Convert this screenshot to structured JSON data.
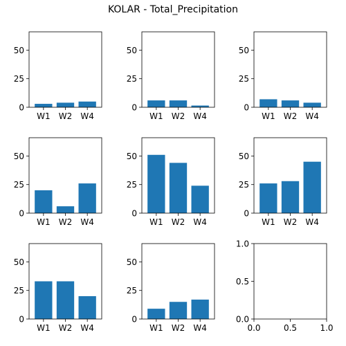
{
  "title": "KOLAR - Total_Precipitation",
  "colors": {
    "bar": "#1f77b4",
    "axis": "#000000",
    "background": "#ffffff"
  },
  "chart_data": [
    {
      "type": "bar",
      "categories": [
        "W1",
        "W2",
        "W4"
      ],
      "values": [
        3,
        4,
        5
      ],
      "ylim": [
        0,
        66
      ],
      "yticks": [
        0,
        25,
        50
      ]
    },
    {
      "type": "bar",
      "categories": [
        "W1",
        "W2",
        "W4"
      ],
      "values": [
        6,
        6,
        1.5
      ],
      "ylim": [
        0,
        66
      ],
      "yticks": [
        0,
        25,
        50
      ]
    },
    {
      "type": "bar",
      "categories": [
        "W1",
        "W2",
        "W4"
      ],
      "values": [
        7,
        6,
        4
      ],
      "ylim": [
        0,
        66
      ],
      "yticks": [
        0,
        25,
        50
      ]
    },
    {
      "type": "bar",
      "categories": [
        "W1",
        "W2",
        "W4"
      ],
      "values": [
        20,
        6,
        26
      ],
      "ylim": [
        0,
        66
      ],
      "yticks": [
        0,
        25,
        50
      ]
    },
    {
      "type": "bar",
      "categories": [
        "W1",
        "W2",
        "W4"
      ],
      "values": [
        51,
        44,
        24
      ],
      "ylim": [
        0,
        66
      ],
      "yticks": [
        0,
        25,
        50
      ]
    },
    {
      "type": "bar",
      "categories": [
        "W1",
        "W2",
        "W4"
      ],
      "values": [
        26,
        28,
        45
      ],
      "ylim": [
        0,
        66
      ],
      "yticks": [
        0,
        25,
        50
      ]
    },
    {
      "type": "bar",
      "categories": [
        "W1",
        "W2",
        "W4"
      ],
      "values": [
        33,
        33,
        20
      ],
      "ylim": [
        0,
        66
      ],
      "yticks": [
        0,
        25,
        50
      ]
    },
    {
      "type": "bar",
      "categories": [
        "W1",
        "W2",
        "W4"
      ],
      "values": [
        9,
        15,
        17
      ],
      "ylim": [
        0,
        66
      ],
      "yticks": [
        0,
        25,
        50
      ]
    },
    {
      "type": "empty",
      "xlim": [
        0,
        1
      ],
      "ylim": [
        0,
        1
      ],
      "xticks": [
        "0.0",
        "0.5",
        "1.0"
      ],
      "yticks": [
        "0.0",
        "0.5",
        "1.0"
      ]
    }
  ]
}
